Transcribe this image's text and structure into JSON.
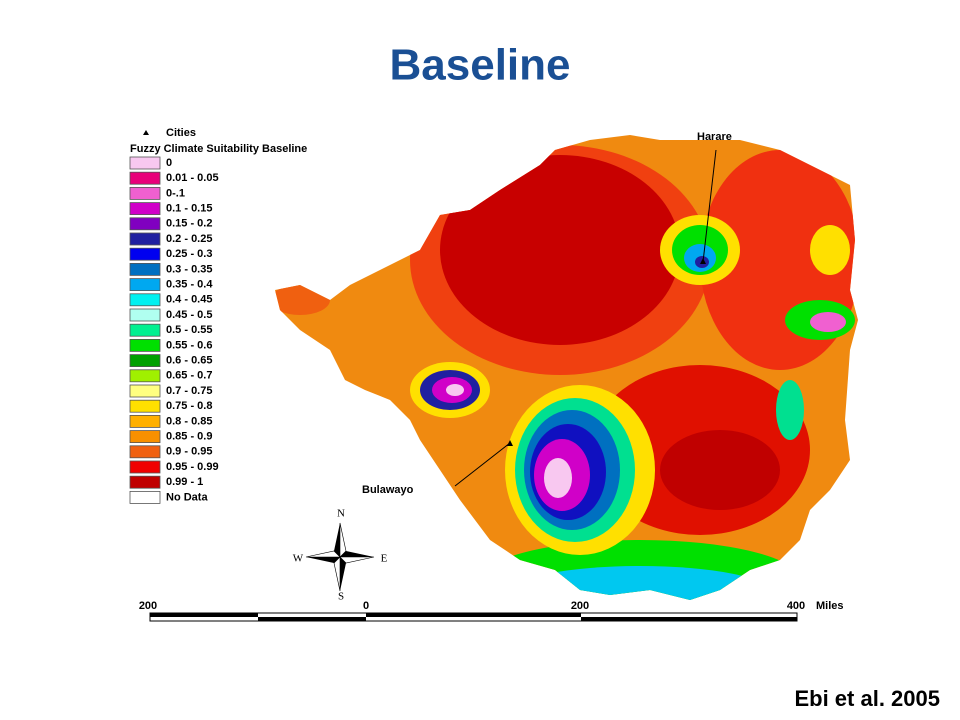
{
  "header": {
    "title": "Baseline"
  },
  "legend": {
    "cities_label": "Cities",
    "title": "Fuzzy Climate Suitability Baseline",
    "items": [
      {
        "label": "0",
        "color": "#f8c8f0"
      },
      {
        "label": "0.01 - 0.05",
        "color": "#e8007a"
      },
      {
        "label": "0-.1",
        "color": "#f060d0"
      },
      {
        "label": "0.1 - 0.15",
        "color": "#d000c8"
      },
      {
        "label": "0.15 - 0.2",
        "color": "#8000c0"
      },
      {
        "label": "0.2 - 0.25",
        "color": "#2020a0"
      },
      {
        "label": "0.25 - 0.3",
        "color": "#0000f0"
      },
      {
        "label": "0.3 - 0.35",
        "color": "#0070c0"
      },
      {
        "label": "0.35 - 0.4",
        "color": "#00a8f0"
      },
      {
        "label": "0.4 - 0.45",
        "color": "#00f0f0"
      },
      {
        "label": "0.45 - 0.5",
        "color": "#b0fff0"
      },
      {
        "label": "0.5 - 0.55",
        "color": "#00f090"
      },
      {
        "label": "0.55 - 0.6",
        "color": "#00e000"
      },
      {
        "label": "0.6 - 0.65",
        "color": "#00a000"
      },
      {
        "label": "0.65 - 0.7",
        "color": "#a0f000"
      },
      {
        "label": "0.7 - 0.75",
        "color": "#ffff80"
      },
      {
        "label": "0.75 - 0.8",
        "color": "#ffe000"
      },
      {
        "label": "0.8 - 0.85",
        "color": "#ffb000"
      },
      {
        "label": "0.85 - 0.9",
        "color": "#f89000"
      },
      {
        "label": "0.9 - 0.95",
        "color": "#f06010"
      },
      {
        "label": "0.95 - 0.99",
        "color": "#f00000"
      },
      {
        "label": "0.99 - 1",
        "color": "#c00000"
      },
      {
        "label": "No Data",
        "color": "#ffffff"
      }
    ]
  },
  "cities": [
    {
      "label": "Harare"
    },
    {
      "label": "Bulawayo"
    }
  ],
  "compass": {
    "n": "N",
    "s": "S",
    "e": "E",
    "w": "W"
  },
  "scale_bar": {
    "labels": [
      "200",
      "0",
      "200",
      "400"
    ],
    "unit": "Miles"
  },
  "citation": "Ebi et al. 2005"
}
